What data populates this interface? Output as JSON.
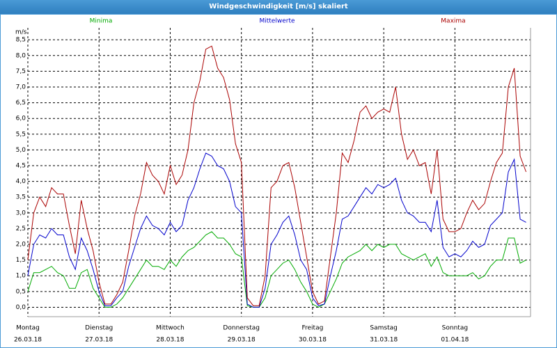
{
  "window_title": "Windgeschwindigkeit [m/s] skaliert",
  "chart_data": {
    "type": "line",
    "ylabel": "m/s",
    "ylim": [
      -0.3,
      8.88
    ],
    "yticks": [
      {
        "value": 0,
        "label": "0,0"
      },
      {
        "value": 0.5,
        "label": "0,5"
      },
      {
        "value": 1,
        "label": "1,0"
      },
      {
        "value": 1.5,
        "label": "1,5"
      },
      {
        "value": 2,
        "label": "2,0"
      },
      {
        "value": 2.5,
        "label": "2,5"
      },
      {
        "value": 3,
        "label": "3,0"
      },
      {
        "value": 3.5,
        "label": "3,5"
      },
      {
        "value": 4,
        "label": "4,0"
      },
      {
        "value": 4.5,
        "label": "4,5"
      },
      {
        "value": 5,
        "label": "5,0"
      },
      {
        "value": 5.5,
        "label": "5,5"
      },
      {
        "value": 6,
        "label": "6,0"
      },
      {
        "value": 6.5,
        "label": "6,5"
      },
      {
        "value": 7,
        "label": "7,0"
      },
      {
        "value": 7.5,
        "label": "7,5"
      },
      {
        "value": 8,
        "label": "8,0"
      },
      {
        "value": 8.5,
        "label": "8,5"
      }
    ],
    "xlim": [
      0,
      169.5
    ],
    "xticks": [
      {
        "value": 0,
        "label": "Montag"
      },
      {
        "value": 24,
        "label": "Dienstag"
      },
      {
        "value": 48,
        "label": "Mittwoch"
      },
      {
        "value": 72,
        "label": "Donnerstag"
      },
      {
        "value": 96,
        "label": "Freitag"
      },
      {
        "value": 120,
        "label": "Samstag"
      },
      {
        "value": 144,
        "label": "Sonntag"
      }
    ],
    "xtick_dates": [
      "26.03.18",
      "27.03.18",
      "28.03.18",
      "29.03.18",
      "30.03.18",
      "31.03.18",
      "01.04.18"
    ],
    "grid": true,
    "x": [
      0,
      2,
      4,
      6,
      8,
      10,
      12,
      14,
      16,
      18,
      20,
      22,
      24,
      26,
      28,
      30,
      32,
      34,
      36,
      38,
      40,
      42,
      44,
      46,
      48,
      50,
      52,
      54,
      56,
      58,
      60,
      62,
      64,
      66,
      68,
      70,
      72,
      74,
      76,
      78,
      80,
      82,
      84,
      86,
      88,
      90,
      92,
      94,
      96,
      98,
      100,
      102,
      104,
      106,
      108,
      110,
      112,
      114,
      116,
      118,
      120,
      122,
      124,
      126,
      128,
      130,
      132,
      134,
      136,
      138,
      140,
      142,
      144,
      146,
      148,
      150,
      152,
      154,
      156,
      158,
      160,
      162,
      164,
      166,
      168
    ],
    "series": [
      {
        "name": "Minima",
        "color": "#00aa00",
        "values": [
          0.5,
          1.1,
          1.1,
          1.2,
          1.3,
          1.1,
          1.0,
          0.6,
          0.6,
          1.1,
          1.2,
          0.6,
          0.3,
          0.0,
          0.0,
          0.1,
          0.3,
          0.6,
          0.9,
          1.2,
          1.5,
          1.3,
          1.3,
          1.2,
          1.5,
          1.3,
          1.6,
          1.8,
          1.9,
          2.1,
          2.3,
          2.4,
          2.2,
          2.2,
          2.0,
          1.7,
          1.6,
          0.05,
          0.0,
          0.0,
          0.3,
          1.0,
          1.2,
          1.4,
          1.5,
          1.2,
          0.8,
          0.5,
          0.1,
          0.0,
          0.1,
          0.5,
          0.9,
          1.4,
          1.6,
          1.7,
          1.8,
          2.0,
          1.8,
          2.0,
          1.9,
          2.0,
          2.0,
          1.7,
          1.6,
          1.5,
          1.6,
          1.7,
          1.3,
          1.6,
          1.1,
          1.0,
          1.0,
          1.0,
          1.0,
          1.1,
          0.9,
          1.0,
          1.3,
          1.5,
          1.5,
          2.2,
          2.2,
          1.4,
          1.5
        ]
      },
      {
        "name": "Mittelwerte",
        "color": "#0000cc",
        "values": [
          1.0,
          2.0,
          2.3,
          2.2,
          2.5,
          2.3,
          2.3,
          1.6,
          1.2,
          2.2,
          1.8,
          1.2,
          0.5,
          0.05,
          0.05,
          0.3,
          0.5,
          1.3,
          1.9,
          2.5,
          2.9,
          2.6,
          2.5,
          2.3,
          2.7,
          2.4,
          2.6,
          3.4,
          3.8,
          4.4,
          4.9,
          4.8,
          4.5,
          4.4,
          4.0,
          3.2,
          3.0,
          0.1,
          0.0,
          0.0,
          0.6,
          2.0,
          2.3,
          2.7,
          2.9,
          2.3,
          1.5,
          1.2,
          0.3,
          0.05,
          0.1,
          1.0,
          1.8,
          2.8,
          2.9,
          3.2,
          3.5,
          3.8,
          3.6,
          3.9,
          3.8,
          3.9,
          4.1,
          3.4,
          3.0,
          2.9,
          2.7,
          2.7,
          2.4,
          3.4,
          1.9,
          1.6,
          1.7,
          1.6,
          1.8,
          2.1,
          1.9,
          2.0,
          2.6,
          2.8,
          3.0,
          4.3,
          4.7,
          2.8,
          2.7
        ]
      },
      {
        "name": "Maxima",
        "color": "#aa0000",
        "values": [
          1.5,
          3.0,
          3.5,
          3.2,
          3.8,
          3.6,
          3.6,
          2.6,
          1.7,
          3.4,
          2.5,
          1.8,
          0.8,
          0.1,
          0.1,
          0.4,
          0.8,
          1.8,
          2.9,
          3.6,
          4.6,
          4.2,
          4.0,
          3.6,
          4.5,
          3.9,
          4.2,
          5.0,
          6.5,
          7.2,
          8.2,
          8.3,
          7.6,
          7.3,
          6.6,
          5.2,
          4.6,
          0.3,
          0.05,
          0.05,
          1.0,
          3.8,
          4.0,
          4.5,
          4.6,
          3.8,
          2.7,
          1.6,
          0.5,
          0.1,
          0.2,
          1.6,
          3.0,
          4.9,
          4.6,
          5.3,
          6.2,
          6.4,
          6.0,
          6.2,
          6.3,
          6.2,
          7.0,
          5.5,
          4.7,
          5.0,
          4.5,
          4.6,
          3.6,
          5.0,
          2.8,
          2.4,
          2.4,
          2.5,
          3.0,
          3.4,
          3.1,
          3.3,
          4.0,
          4.6,
          4.9,
          7.0,
          7.6,
          4.8,
          4.3
        ]
      }
    ]
  }
}
